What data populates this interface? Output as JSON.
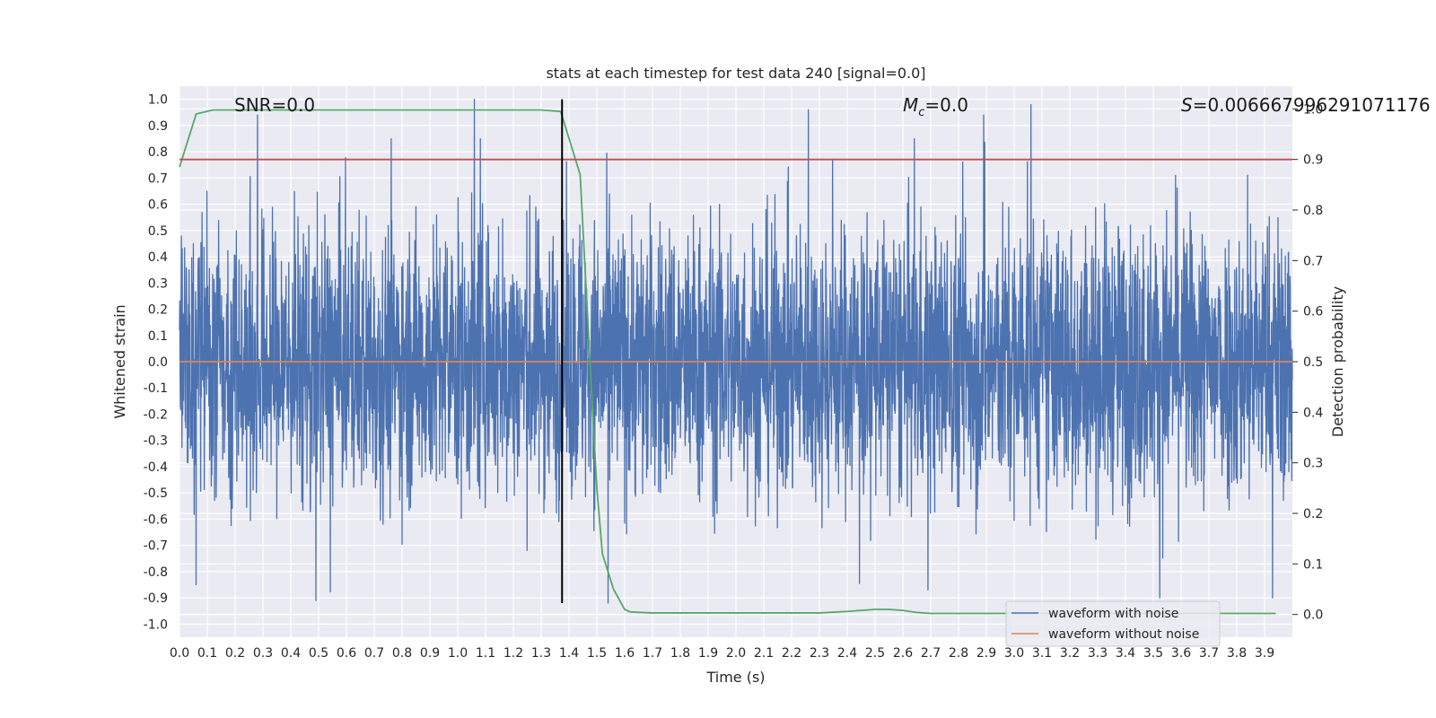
{
  "chart_data": {
    "type": "line",
    "title": "stats at each timestep for test data 240 [signal=0.0]",
    "xlabel": "Time (s)",
    "ylabel": "Whitened strain",
    "y2label": "Detection probability",
    "xlim": [
      0.0,
      4.0
    ],
    "ylim": [
      -1.05,
      1.05
    ],
    "y2lim": [
      -0.045,
      1.045
    ],
    "x_ticks": [
      "0.0",
      "0.1",
      "0.2",
      "0.3",
      "0.4",
      "0.5",
      "0.6",
      "0.7",
      "0.8",
      "0.9",
      "1.0",
      "1.1",
      "1.2",
      "1.3",
      "1.4",
      "1.5",
      "1.6",
      "1.7",
      "1.8",
      "1.9",
      "2.0",
      "2.1",
      "2.2",
      "2.3",
      "2.4",
      "2.5",
      "2.6",
      "2.7",
      "2.8",
      "2.9",
      "3.0",
      "3.1",
      "3.2",
      "3.3",
      "3.4",
      "3.5",
      "3.6",
      "3.7",
      "3.8",
      "3.9"
    ],
    "y_ticks": [
      "1.0",
      "0.9",
      "0.8",
      "0.7",
      "0.6",
      "0.5",
      "0.4",
      "0.3",
      "0.2",
      "0.1",
      "0.0",
      "-0.1",
      "-0.2",
      "-0.3",
      "-0.4",
      "-0.5",
      "-0.6",
      "-0.7",
      "-0.8",
      "-0.9",
      "-1.0"
    ],
    "y2_ticks": [
      "1.0",
      "0.9",
      "0.8",
      "0.7",
      "0.6",
      "0.5",
      "0.4",
      "0.3",
      "0.2",
      "0.1",
      "0.0"
    ],
    "grid": true,
    "legend_position": "bottom-right",
    "annotations": {
      "snr": "SNR=0.0",
      "mc_symbol": "M",
      "mc_sub": "c",
      "mc_value": "=0.0",
      "s_symbol": "S",
      "s_value": "=0.006667996291071176"
    },
    "series": [
      {
        "name": "waveform with noise",
        "axis": "left",
        "color": "#4c72b0",
        "description": "whitened noise trace, values approximately between -0.92 and 1.0",
        "envelope_peaks": [
          {
            "x": 0.28,
            "y": 0.94
          },
          {
            "x": 1.06,
            "y": 1.0
          },
          {
            "x": 2.26,
            "y": 0.96
          },
          {
            "x": 2.89,
            "y": 0.94
          },
          {
            "x": 3.06,
            "y": 0.98
          },
          {
            "x": 0.49,
            "y": -0.91
          },
          {
            "x": 1.54,
            "y": -0.92
          },
          {
            "x": 2.69,
            "y": -0.87
          },
          {
            "x": 0.06,
            "y": -0.85
          }
        ]
      },
      {
        "name": "waveform without noise",
        "axis": "left",
        "color": "#dd8452",
        "x": [
          0.0,
          4.0
        ],
        "y": [
          0.0,
          0.0
        ]
      },
      {
        "axis": "right",
        "color": "#55a868",
        "x": [
          0.0,
          0.06,
          0.12,
          0.2,
          0.5,
          1.0,
          1.3,
          1.37,
          1.44,
          1.48,
          1.5,
          1.52,
          1.56,
          1.6,
          1.62,
          1.7,
          2.0,
          2.3,
          2.4,
          2.5,
          2.55,
          2.6,
          2.65,
          2.7,
          3.0,
          3.5,
          3.94
        ],
        "y": [
          0.885,
          0.99,
          0.998,
          0.998,
          0.998,
          0.998,
          0.998,
          0.995,
          0.87,
          0.45,
          0.25,
          0.12,
          0.05,
          0.01,
          0.005,
          0.003,
          0.003,
          0.003,
          0.006,
          0.01,
          0.01,
          0.008,
          0.004,
          0.002,
          0.002,
          0.002,
          0.002
        ]
      },
      {
        "axis": "right",
        "color": "#c44e52",
        "x": [
          0.0,
          4.0
        ],
        "y": [
          0.9,
          0.9
        ]
      }
    ],
    "vertical_marker": {
      "x": 1.375,
      "y_from": -0.92,
      "y_to": 1.0,
      "color": "#000000"
    }
  }
}
